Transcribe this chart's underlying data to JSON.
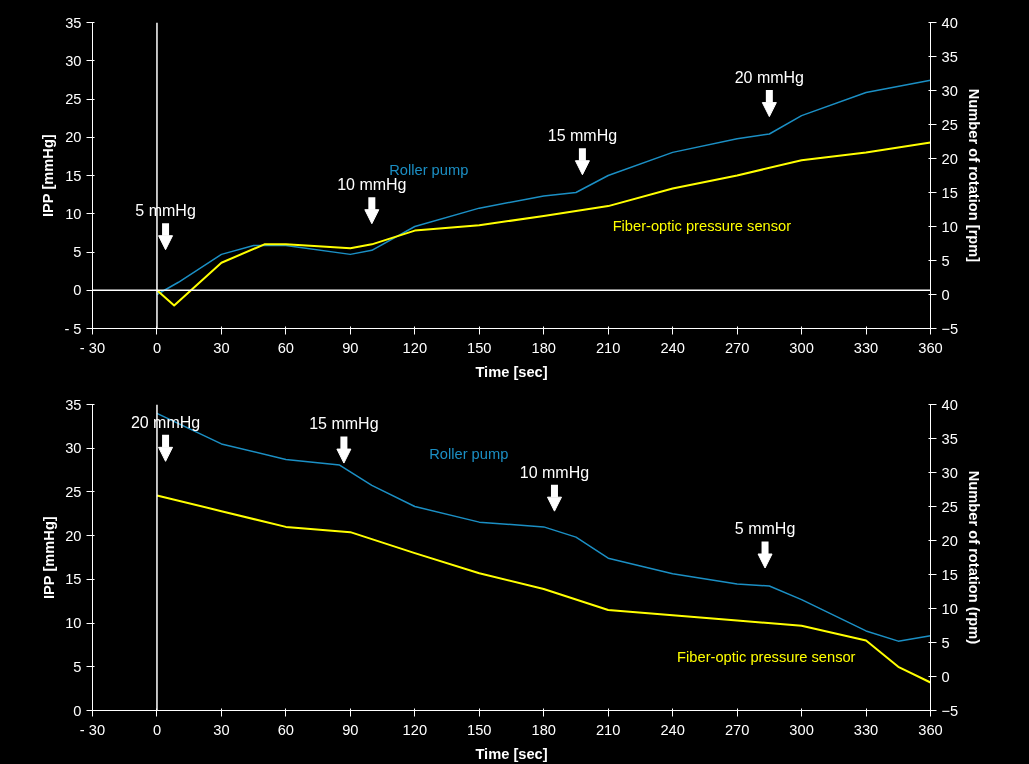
{
  "chart_data": [
    {
      "type": "line",
      "xlabel": "Time [sec]",
      "ylabel": "IPP [mmHg]",
      "y2label": "Number of rotation [rpm]",
      "xlim": [
        -30,
        360
      ],
      "xticks": [
        {
          "value": -30,
          "label": "- 30"
        },
        0,
        30,
        60,
        90,
        120,
        150,
        180,
        210,
        240,
        270,
        300,
        330,
        360
      ],
      "ylim": [
        -5,
        35
      ],
      "yticks": [
        {
          "value": -5,
          "label": "- 5"
        },
        0,
        5,
        10,
        15,
        20,
        25,
        30,
        35
      ],
      "y2lim": [
        -5,
        40
      ],
      "y2ticks": [
        -5,
        0,
        5,
        10,
        15,
        20,
        25,
        30,
        35,
        40
      ],
      "ref_lines": [
        {
          "axis": "x",
          "value": 0,
          "color": "#ffffff"
        },
        {
          "axis": "y",
          "value": 0,
          "color": "#ffffff"
        }
      ],
      "annotations": [
        "5 mmHg",
        "10 mmHg",
        "15 mmHg",
        "20 mmHg"
      ],
      "series": [
        {
          "name": "Roller pump",
          "color": "#1b8fc4",
          "axis": "y2",
          "x": [
            0,
            10,
            30,
            45,
            60,
            90,
            100,
            120,
            150,
            180,
            195,
            210,
            240,
            270,
            285,
            300,
            330,
            360
          ],
          "values": [
            0,
            1.8,
            5.9,
            7.2,
            7.2,
            5.9,
            6.5,
            10,
            12.7,
            14.5,
            15,
            17.5,
            20.9,
            22.9,
            23.6,
            26.3,
            29.7,
            31.5
          ]
        },
        {
          "name": "Fiber-optic pressure sensor",
          "color": "#ffff00",
          "axis": "y",
          "x": [
            0,
            8,
            30,
            50,
            60,
            90,
            100,
            120,
            150,
            180,
            210,
            240,
            270,
            300,
            330,
            360
          ],
          "values": [
            0,
            -2,
            3.6,
            6,
            6,
            5.5,
            6,
            7.8,
            8.5,
            9.7,
            11,
            13.3,
            15,
            17,
            18,
            19.3
          ]
        }
      ]
    },
    {
      "type": "line",
      "xlabel": "Time [sec]",
      "ylabel": "IPP [mmHg]",
      "y2label": "Number of rotation (rpm)",
      "xlim": [
        -30,
        360
      ],
      "xticks": [
        {
          "value": -30,
          "label": "- 30"
        },
        0,
        30,
        60,
        90,
        120,
        150,
        180,
        210,
        240,
        270,
        300,
        330,
        360
      ],
      "ylim": [
        0,
        35
      ],
      "yticks": [
        0,
        5,
        10,
        15,
        20,
        25,
        30,
        35
      ],
      "y2lim": [
        -5,
        40
      ],
      "y2ticks": [
        -5,
        0,
        5,
        10,
        15,
        20,
        25,
        30,
        35,
        40
      ],
      "ref_lines": [
        {
          "axis": "x",
          "value": 0,
          "color": "#ffffff"
        }
      ],
      "annotations": [
        "20 mmHg",
        "15 mmHg",
        "10 mmHg",
        "5 mmHg"
      ],
      "series": [
        {
          "name": "Roller pump",
          "color": "#1b8fc4",
          "axis": "y2",
          "x": [
            0,
            30,
            60,
            85,
            100,
            120,
            150,
            180,
            195,
            210,
            240,
            270,
            285,
            300,
            330,
            345,
            360
          ],
          "values": [
            38.7,
            34.2,
            31.9,
            31.1,
            28.1,
            25,
            22.7,
            22,
            20.5,
            17.4,
            15.1,
            13.6,
            13.3,
            11.3,
            6.7,
            5.2,
            6
          ]
        },
        {
          "name": "Fiber-optic pressure sensor",
          "color": "#ffff00",
          "axis": "y",
          "x": [
            0,
            30,
            60,
            90,
            120,
            150,
            180,
            210,
            240,
            270,
            300,
            330,
            345,
            360
          ],
          "values": [
            24.6,
            22.8,
            21,
            20.4,
            18,
            15.7,
            13.9,
            11.5,
            10.9,
            10.3,
            9.7,
            8,
            5,
            3.2
          ]
        }
      ]
    }
  ]
}
